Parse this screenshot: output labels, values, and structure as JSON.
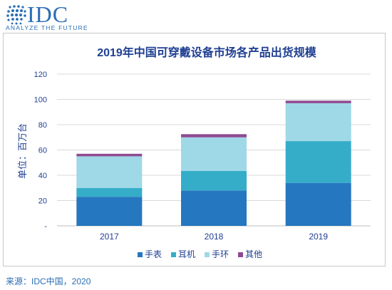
{
  "logo": {
    "name": "IDC",
    "tagline": "ANALYZE THE FUTURE",
    "color": "#2a6db5"
  },
  "source": "来源：IDC中国，2020",
  "chart_data": {
    "type": "bar",
    "stacked": true,
    "title": "2019年中国可穿戴设备市场各产品出货规模",
    "ylabel": "单位：百万台",
    "xlabel": "",
    "ylim": [
      0,
      120
    ],
    "yticks": [
      "-",
      "20",
      "40",
      "60",
      "80",
      "100",
      "120"
    ],
    "categories": [
      "2017",
      "2018",
      "2019"
    ],
    "series": [
      {
        "name": "手表",
        "color": "#2577c0",
        "values": [
          23,
          28,
          34
        ]
      },
      {
        "name": "耳机",
        "color": "#35adc9",
        "values": [
          7,
          15.5,
          33
        ]
      },
      {
        "name": "手环",
        "color": "#9fd8e6",
        "values": [
          25,
          26.5,
          30
        ]
      },
      {
        "name": "其他",
        "color": "#8e4a91",
        "values": [
          2,
          2.5,
          2
        ]
      }
    ],
    "grid": true,
    "legend_position": "bottom"
  }
}
